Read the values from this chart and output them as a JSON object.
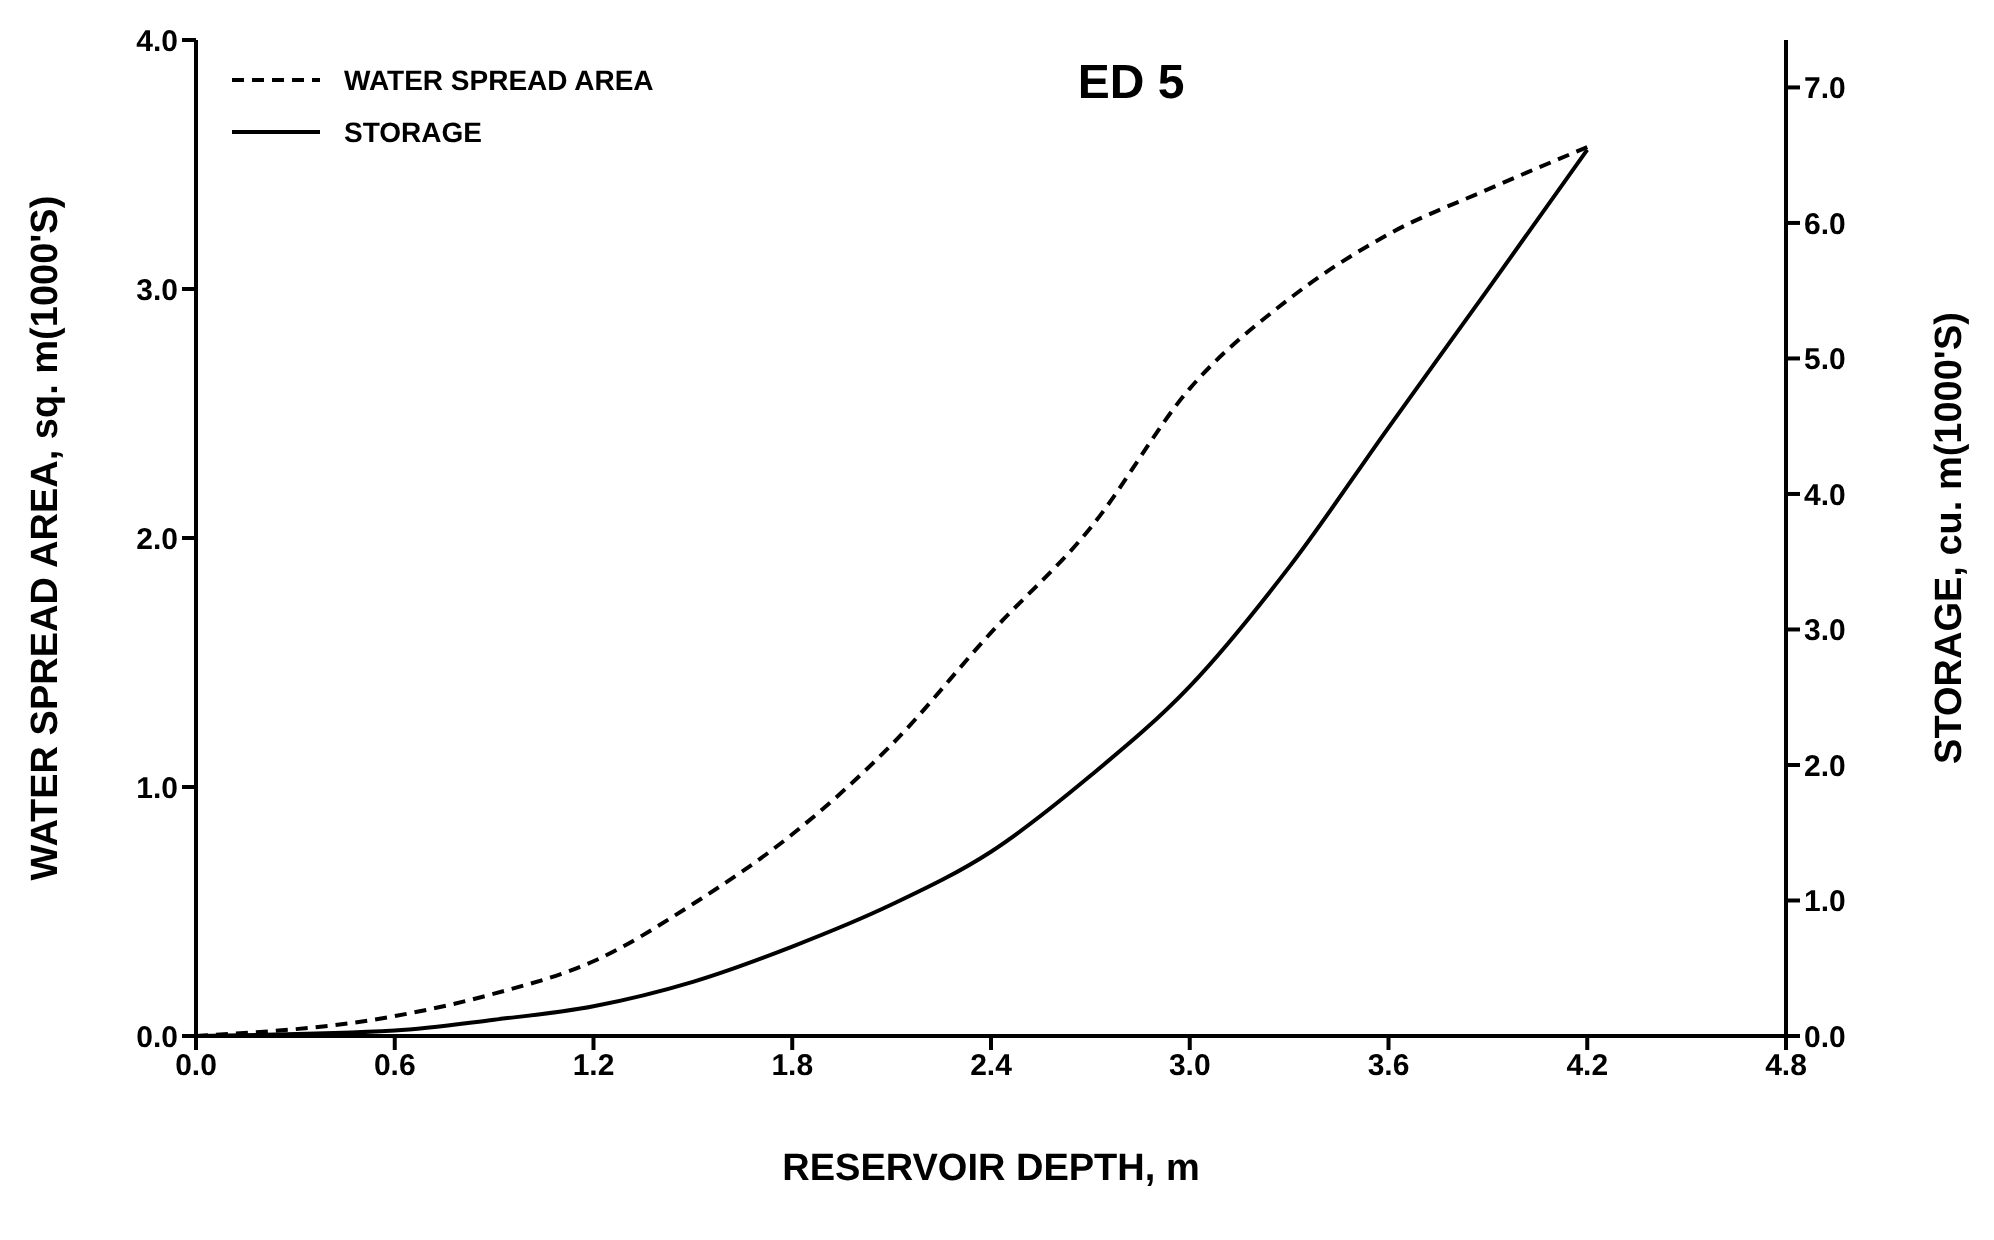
{
  "chart_data": {
    "type": "line",
    "title": "ED 5",
    "xlabel": "RESERVOIR DEPTH, m",
    "ylabel": "WATER SPREAD AREA, sq. m(1000'S)",
    "y2label": "STORAGE, cu. m(1000'S)",
    "x": [
      0,
      0.6,
      0.9,
      1.2,
      1.5,
      1.8,
      2.1,
      2.4,
      2.7,
      3.0,
      3.3,
      3.6,
      3.9,
      4.2
    ],
    "series": [
      {
        "name": "WATER SPREAD AREA",
        "color": "#000000",
        "line_style": "dashed",
        "values": [
          0,
          0.08,
          0.17,
          0.3,
          0.53,
          0.81,
          1.17,
          1.62,
          2.04,
          2.6,
          2.96,
          3.22,
          3.4,
          3.57
        ]
      },
      {
        "name": "STORAGE",
        "color": "#000000",
        "line_style": "solid",
        "axis": "y2",
        "values": [
          0,
          0.04,
          0.12,
          0.22,
          0.4,
          0.66,
          0.97,
          1.36,
          1.92,
          2.58,
          3.46,
          4.49,
          5.51,
          6.54
        ]
      }
    ],
    "xlim": [
      0,
      4.8
    ],
    "xticks": [
      {
        "value": 0,
        "label": "0.0"
      },
      {
        "value": 0.6,
        "label": "0.6"
      },
      {
        "value": 1.2,
        "label": "1.2"
      },
      {
        "value": 1.8,
        "label": "1.8"
      },
      {
        "value": 2.4,
        "label": "2.4"
      },
      {
        "value": 3.0,
        "label": "3.0"
      },
      {
        "value": 3.6,
        "label": "3.6"
      },
      {
        "value": 4.2,
        "label": "4.2"
      },
      {
        "value": 4.8,
        "label": "4.8"
      }
    ],
    "ylim": [
      0,
      4
    ],
    "yticks": [
      {
        "value": 0,
        "label": "0.0"
      },
      {
        "value": 1,
        "label": "1.0"
      },
      {
        "value": 2,
        "label": "2.0"
      },
      {
        "value": 3,
        "label": "3.0"
      },
      {
        "value": 4,
        "label": "4.0"
      }
    ],
    "y2lim": [
      0,
      7.35
    ],
    "y2ticks": [
      {
        "value": 0,
        "label": "0.0"
      },
      {
        "value": 1,
        "label": "1.0"
      },
      {
        "value": 2,
        "label": "2.0"
      },
      {
        "value": 3,
        "label": "3.0"
      },
      {
        "value": 4,
        "label": "4.0"
      },
      {
        "value": 5,
        "label": "5.0"
      },
      {
        "value": 6,
        "label": "6.0"
      },
      {
        "value": 7,
        "label": "7.0"
      }
    ],
    "grid": false,
    "legend": "top left",
    "marker": "none"
  }
}
